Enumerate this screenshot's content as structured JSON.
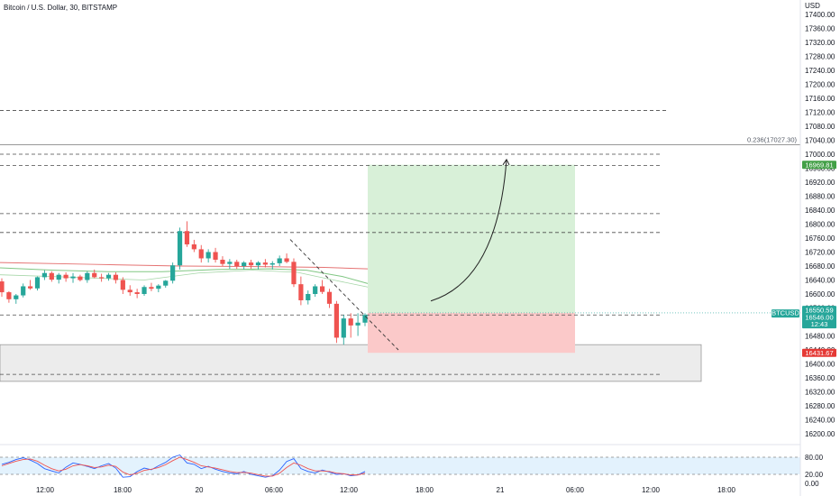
{
  "header": {
    "title": "Bitcoin / U.S. Dollar, 30, BITSTAMP"
  },
  "colors": {
    "up": "#26a69a",
    "down": "#ef5350",
    "target_zone": "#d8f0d8",
    "stop_zone": "#fbc9c9",
    "support_zone": "#ececec",
    "ma_red": "#e57373",
    "ma_green": "#81c784",
    "osc_blue": "#2962ff",
    "osc_red": "#ef5350"
  },
  "chart_data": {
    "type": "candlestick",
    "symbol": "BTCUSD",
    "interval": "30",
    "currency": "USD",
    "ylim": [
      16160,
      17440
    ],
    "y_ticks": [
      "17400.00",
      "17360.00",
      "17320.00",
      "17280.00",
      "17240.00",
      "17200.00",
      "17160.00",
      "17120.00",
      "17080.00",
      "17040.00",
      "17000.00",
      "16960.00",
      "16920.00",
      "16880.00",
      "16840.00",
      "16800.00",
      "16760.00",
      "16720.00",
      "16680.00",
      "16640.00",
      "16600.00",
      "16560.00",
      "16520.00",
      "16480.00",
      "16440.00",
      "16400.00",
      "16360.00",
      "16320.00",
      "16280.00",
      "16240.00",
      "16200.00"
    ],
    "x_ticks": [
      "12:00",
      "18:00",
      "20",
      "06:00",
      "12:00",
      "18:00",
      "21",
      "06:00",
      "12:00",
      "18:00"
    ],
    "fib_label": "0.236(17027.30)",
    "fib_level": 17027.3,
    "horizontal_levels": [
      17125,
      17000,
      16968,
      16830,
      16776,
      16540,
      16370
    ],
    "support_zone": [
      16350,
      16455
    ],
    "position": {
      "entry": 16546,
      "target": 16969.81,
      "stop": 16431.67
    },
    "price_tags": {
      "target": "16969.81",
      "symbol": "BTCUSD",
      "current": "16550.59",
      "current2": "16546.00",
      "countdown": "12:43",
      "stop": "16431.67"
    },
    "oscillator": {
      "levels": [
        "80.00",
        "20.00",
        "0.00"
      ]
    },
    "candles": [
      [
        16636,
        16645,
        16592,
        16605
      ],
      [
        16605,
        16608,
        16575,
        16585
      ],
      [
        16585,
        16600,
        16572,
        16596
      ],
      [
        16596,
        16630,
        16590,
        16622
      ],
      [
        16622,
        16640,
        16612,
        16616
      ],
      [
        16616,
        16650,
        16610,
        16648
      ],
      [
        16648,
        16668,
        16640,
        16660
      ],
      [
        16660,
        16665,
        16635,
        16641
      ],
      [
        16641,
        16660,
        16630,
        16655
      ],
      [
        16655,
        16662,
        16635,
        16645
      ],
      [
        16645,
        16660,
        16632,
        16650
      ],
      [
        16650,
        16655,
        16636,
        16640
      ],
      [
        16640,
        16665,
        16632,
        16660
      ],
      [
        16660,
        16670,
        16645,
        16648
      ],
      [
        16648,
        16658,
        16635,
        16645
      ],
      [
        16645,
        16660,
        16638,
        16655
      ],
      [
        16655,
        16662,
        16630,
        16640
      ],
      [
        16640,
        16648,
        16600,
        16612
      ],
      [
        16612,
        16625,
        16595,
        16605
      ],
      [
        16605,
        16615,
        16588,
        16600
      ],
      [
        16600,
        16625,
        16595,
        16620
      ],
      [
        16620,
        16632,
        16608,
        16615
      ],
      [
        16615,
        16628,
        16605,
        16624
      ],
      [
        16624,
        16640,
        16618,
        16638
      ],
      [
        16638,
        16690,
        16630,
        16682
      ],
      [
        16682,
        16790,
        16670,
        16780
      ],
      [
        16780,
        16808,
        16735,
        16742
      ],
      [
        16742,
        16755,
        16720,
        16728
      ],
      [
        16728,
        16740,
        16690,
        16702
      ],
      [
        16702,
        16728,
        16690,
        16720
      ],
      [
        16720,
        16732,
        16690,
        16698
      ],
      [
        16698,
        16708,
        16680,
        16686
      ],
      [
        16686,
        16700,
        16672,
        16692
      ],
      [
        16692,
        16698,
        16672,
        16680
      ],
      [
        16680,
        16694,
        16670,
        16690
      ],
      [
        16690,
        16698,
        16672,
        16682
      ],
      [
        16682,
        16694,
        16670,
        16690
      ],
      [
        16690,
        16700,
        16676,
        16684
      ],
      [
        16684,
        16694,
        16670,
        16688
      ],
      [
        16688,
        16710,
        16680,
        16702
      ],
      [
        16702,
        16716,
        16688,
        16692
      ],
      [
        16692,
        16702,
        16620,
        16628
      ],
      [
        16628,
        16650,
        16568,
        16582
      ],
      [
        16582,
        16610,
        16570,
        16600
      ],
      [
        16600,
        16628,
        16592,
        16622
      ],
      [
        16622,
        16640,
        16600,
        16606
      ],
      [
        16606,
        16615,
        16560,
        16572
      ],
      [
        16572,
        16580,
        16460,
        16475
      ],
      [
        16475,
        16540,
        16455,
        16530
      ],
      [
        16530,
        16545,
        16475,
        16510
      ],
      [
        16510,
        16545,
        16480,
        16518
      ],
      [
        16518,
        16545,
        16508,
        16540
      ]
    ]
  }
}
